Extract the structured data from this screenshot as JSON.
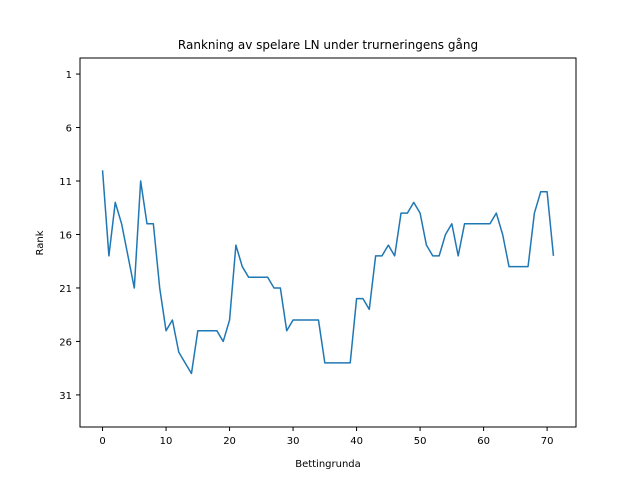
{
  "chart_data": {
    "type": "line",
    "title": "Rankning av spelare LN under trurneringens gång",
    "xlabel": "Bettingrunda",
    "ylabel": "Rank",
    "xlim": [
      -3.55,
      74.55
    ],
    "ylim": [
      34.0,
      -0.5
    ],
    "y_inverted": true,
    "xticks": [
      0,
      10,
      20,
      30,
      40,
      50,
      60,
      70
    ],
    "yticks": [
      1,
      6,
      11,
      16,
      21,
      26,
      31
    ],
    "grid": false,
    "line_color": "#1f77b4",
    "series": [
      {
        "x": [
          0,
          1,
          2,
          3,
          4,
          5,
          6,
          7,
          8,
          9,
          10,
          11,
          12,
          13,
          14,
          15,
          16,
          17,
          18,
          19,
          20,
          21,
          22,
          23,
          24,
          25,
          26,
          27,
          28,
          29,
          30,
          31,
          32,
          33,
          34,
          35,
          36,
          37,
          38,
          39,
          40,
          41,
          42,
          43,
          44,
          45,
          46,
          47,
          48,
          49,
          50,
          51,
          52,
          53,
          54,
          55,
          56,
          57,
          58,
          59,
          60,
          61,
          62,
          63,
          64,
          65,
          66,
          67,
          68,
          69,
          70,
          71
        ],
        "values": [
          10,
          18,
          13,
          15,
          18,
          21,
          11,
          15,
          15,
          21,
          25,
          24,
          27,
          28,
          29,
          25,
          25,
          25,
          25,
          26,
          24,
          17,
          19,
          20,
          20,
          20,
          20,
          21,
          21,
          25,
          24,
          24,
          24,
          24,
          24,
          28,
          28,
          28,
          28,
          28,
          22,
          22,
          23,
          18,
          18,
          17,
          18,
          14,
          14,
          13,
          14,
          17,
          18,
          18,
          16,
          15,
          18,
          15,
          15,
          15,
          15,
          15,
          14,
          16,
          19,
          19,
          19,
          19,
          14,
          12,
          12,
          18
        ]
      }
    ]
  }
}
